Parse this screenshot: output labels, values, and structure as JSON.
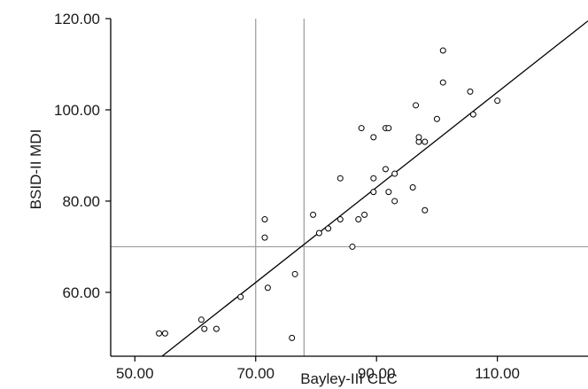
{
  "chart_data": {
    "type": "scatter",
    "title": "",
    "xlabel": "Bayley-III CLC",
    "ylabel": "BSID-II MDI",
    "xlim": [
      46,
      125
    ],
    "ylim": [
      46,
      120
    ],
    "x_ticks": [
      50,
      70,
      90,
      110
    ],
    "y_ticks": [
      60,
      80,
      100,
      120
    ],
    "x_tick_labels": [
      "50.00",
      "70.00",
      "90.00",
      "110.00"
    ],
    "y_tick_labels": [
      "60.00",
      "80.00",
      "100.00",
      "120.00"
    ],
    "grid": false,
    "legend": "none",
    "points": [
      {
        "x": 54,
        "y": 51
      },
      {
        "x": 55,
        "y": 51
      },
      {
        "x": 61,
        "y": 54
      },
      {
        "x": 61.5,
        "y": 52
      },
      {
        "x": 63.5,
        "y": 52
      },
      {
        "x": 67.5,
        "y": 59
      },
      {
        "x": 71.5,
        "y": 72
      },
      {
        "x": 71.5,
        "y": 76
      },
      {
        "x": 72,
        "y": 61
      },
      {
        "x": 76,
        "y": 50
      },
      {
        "x": 76.5,
        "y": 64
      },
      {
        "x": 79.5,
        "y": 77
      },
      {
        "x": 80.5,
        "y": 73
      },
      {
        "x": 82,
        "y": 74
      },
      {
        "x": 84,
        "y": 76
      },
      {
        "x": 84,
        "y": 85
      },
      {
        "x": 86,
        "y": 70
      },
      {
        "x": 87,
        "y": 76
      },
      {
        "x": 87.5,
        "y": 96
      },
      {
        "x": 88,
        "y": 77
      },
      {
        "x": 89.5,
        "y": 94
      },
      {
        "x": 89.5,
        "y": 85
      },
      {
        "x": 89.5,
        "y": 82
      },
      {
        "x": 91.5,
        "y": 96
      },
      {
        "x": 91.5,
        "y": 87
      },
      {
        "x": 92,
        "y": 96
      },
      {
        "x": 92,
        "y": 82
      },
      {
        "x": 93,
        "y": 80
      },
      {
        "x": 93,
        "y": 86
      },
      {
        "x": 96,
        "y": 83
      },
      {
        "x": 96.5,
        "y": 101
      },
      {
        "x": 97,
        "y": 93
      },
      {
        "x": 97,
        "y": 94
      },
      {
        "x": 98,
        "y": 93
      },
      {
        "x": 98,
        "y": 78
      },
      {
        "x": 100,
        "y": 98
      },
      {
        "x": 101,
        "y": 113
      },
      {
        "x": 101,
        "y": 106
      },
      {
        "x": 105.5,
        "y": 104
      },
      {
        "x": 106,
        "y": 99
      },
      {
        "x": 110,
        "y": 102
      }
    ],
    "fit_line": {
      "x1": 54.5,
      "y1": 46,
      "x2": 125,
      "y2": 119.5
    },
    "reference_lines": [
      {
        "orientation": "vertical",
        "value": 70
      },
      {
        "orientation": "vertical",
        "value": 78
      },
      {
        "orientation": "horizontal",
        "value": 70
      }
    ]
  },
  "colors": {
    "axis": "#000000",
    "reference": "#9a9a9a",
    "fit_line": "#000000",
    "marker": "#000000"
  }
}
